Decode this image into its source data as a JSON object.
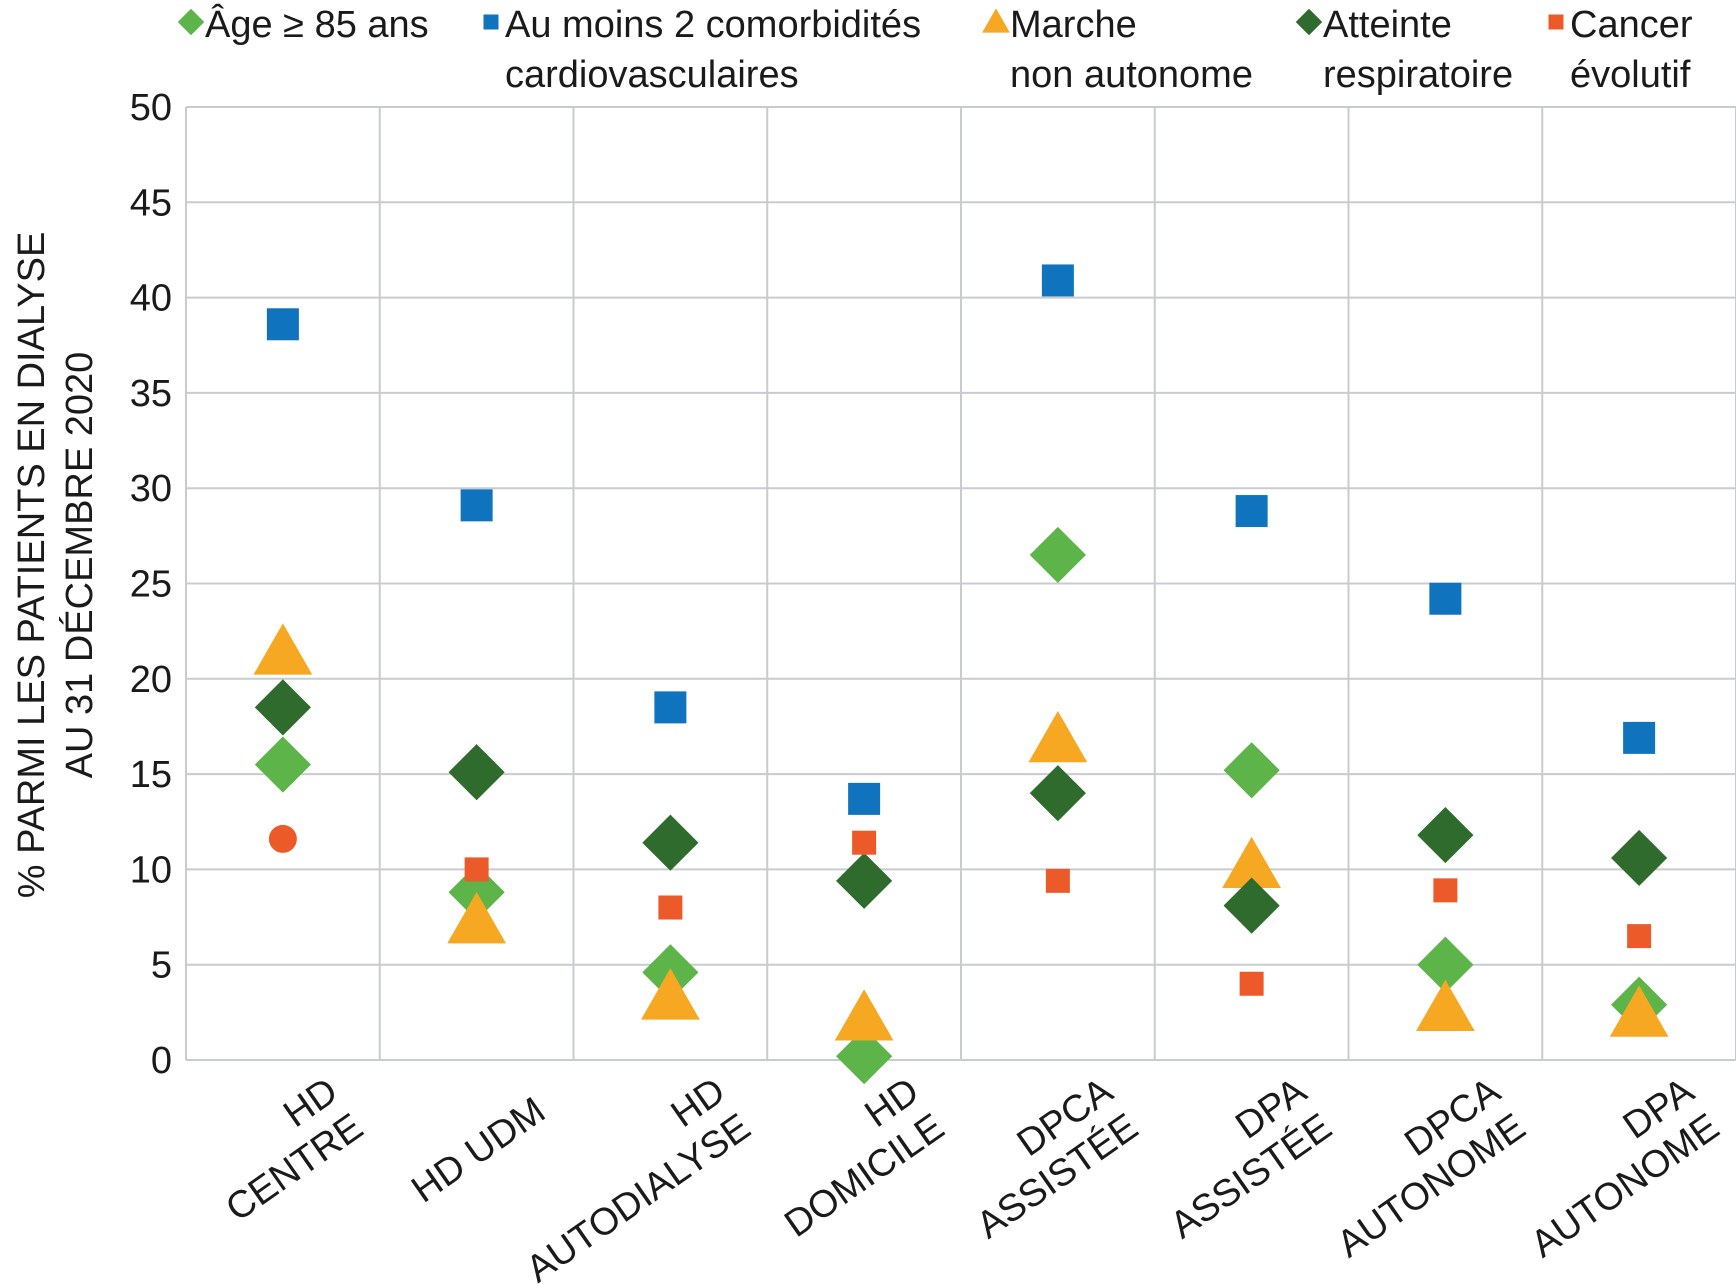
{
  "chart_data": {
    "type": "scatter",
    "title": "",
    "ylabel_lines": [
      "% PARMI LES PATIENTS EN DIALYSE",
      "AU 31 DÉCEMBRE 2020"
    ],
    "xlabel": "",
    "ylim": [
      0,
      50
    ],
    "y_ticks": [
      0,
      5,
      10,
      15,
      20,
      25,
      30,
      35,
      40,
      45,
      50
    ],
    "grid": true,
    "legend_position": "top",
    "categories": [
      [
        "HD",
        "CENTRE"
      ],
      [
        "HD UDM"
      ],
      [
        "HD",
        "AUTODIALYSE"
      ],
      [
        "HD",
        "DOMICILE"
      ],
      [
        "DPCA",
        "ASSISTÉE"
      ],
      [
        "DPA",
        "ASSISTÉE"
      ],
      [
        "DPCA",
        "AUTONOME"
      ],
      [
        "DPA",
        "AUTONOME"
      ]
    ],
    "series": [
      {
        "name_lines": [
          "Âge ≥ 85 ans"
        ],
        "marker": "diamond",
        "color": "#5db54a",
        "values": [
          15.5,
          8.8,
          4.6,
          0.2,
          26.5,
          15.2,
          5.0,
          2.9
        ]
      },
      {
        "name_lines": [
          "Au moins 2 comorbidités",
          "cardiovasculaires"
        ],
        "marker": "square",
        "color": "#0f73be",
        "values": [
          38.6,
          29.1,
          18.5,
          13.7,
          40.9,
          28.8,
          24.2,
          16.9
        ]
      },
      {
        "name_lines": [
          "Marche",
          "non autonome"
        ],
        "marker": "triangle",
        "color": "#f7a823",
        "values": [
          21.4,
          7.3,
          3.3,
          2.2,
          16.8,
          10.2,
          2.7,
          2.4
        ]
      },
      {
        "name_lines": [
          "Atteinte",
          "respiratoire"
        ],
        "marker": "diamond",
        "color": "#2e6b2c",
        "values": [
          18.5,
          15.1,
          11.4,
          9.4,
          14.0,
          8.1,
          11.8,
          10.6
        ]
      },
      {
        "name_lines": [
          "Cancer",
          "évolutif"
        ],
        "marker": "square",
        "color": "#ec5a2a",
        "values": [
          11.6,
          10.0,
          8.0,
          11.4,
          9.4,
          4.0,
          8.9,
          6.5
        ],
        "marker_overrides": {
          "0": "circle"
        }
      }
    ]
  }
}
